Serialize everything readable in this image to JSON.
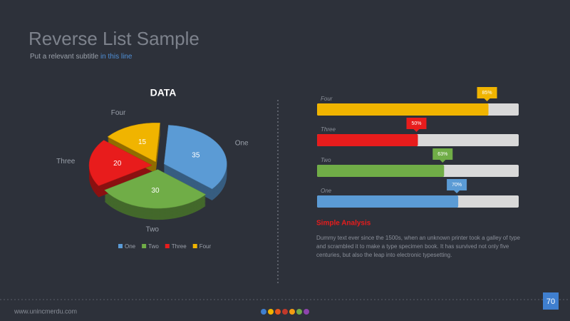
{
  "title": "Reverse List Sample",
  "subtitle": {
    "text": "Put a relevant subtitle ",
    "highlight": "in this line"
  },
  "chart_data": [
    {
      "type": "pie",
      "title": "DATA",
      "categories": [
        "One",
        "Two",
        "Three",
        "Four"
      ],
      "values": [
        35,
        30,
        20,
        15
      ],
      "colors": [
        "#5b9bd5",
        "#70ad47",
        "#e81c1c",
        "#f0b400"
      ],
      "legend": "bottom"
    },
    {
      "type": "bar",
      "orientation": "horizontal",
      "categories": [
        "Four",
        "Three",
        "Two",
        "One"
      ],
      "values": [
        85,
        50,
        63,
        70
      ],
      "value_labels": [
        "85%",
        "50%",
        "63%",
        "70%"
      ],
      "colors": [
        "#f0b400",
        "#e81c1c",
        "#70ad47",
        "#5b9bd5"
      ],
      "xlim": [
        0,
        100
      ],
      "track_color": "#d9d9d9"
    }
  ],
  "analysis": {
    "heading": "Simple Analysis",
    "body": "Dummy text ever since the 1500s, when an unknown printer took a galley of type and scrambled it to make a type specimen book. It has survived not only five centuries, but also the leap into electronic typesetting."
  },
  "footer": {
    "url": "www.unincmerdu.com",
    "page": "70"
  }
}
